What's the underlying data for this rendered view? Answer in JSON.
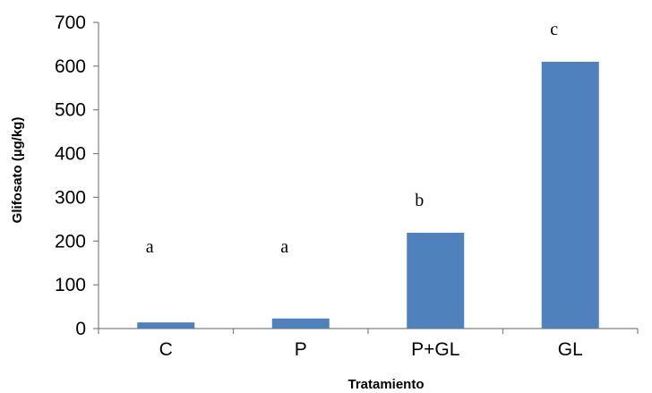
{
  "chart_data": {
    "type": "bar",
    "categories": [
      "C",
      "P",
      "P+GL",
      "GL"
    ],
    "values": [
      14,
      23,
      219,
      610
    ],
    "labels": [
      "a",
      "a",
      "b",
      "c"
    ],
    "xlabel": "Tratamiento",
    "ylabel": "Glifosato (µg/kg)",
    "ylim": [
      0,
      700
    ],
    "yticks": [
      "0",
      "100",
      "200",
      "300",
      "400",
      "500",
      "600",
      "700"
    ],
    "grid": false,
    "legend": "none",
    "bar_color": "#4F81BD"
  }
}
